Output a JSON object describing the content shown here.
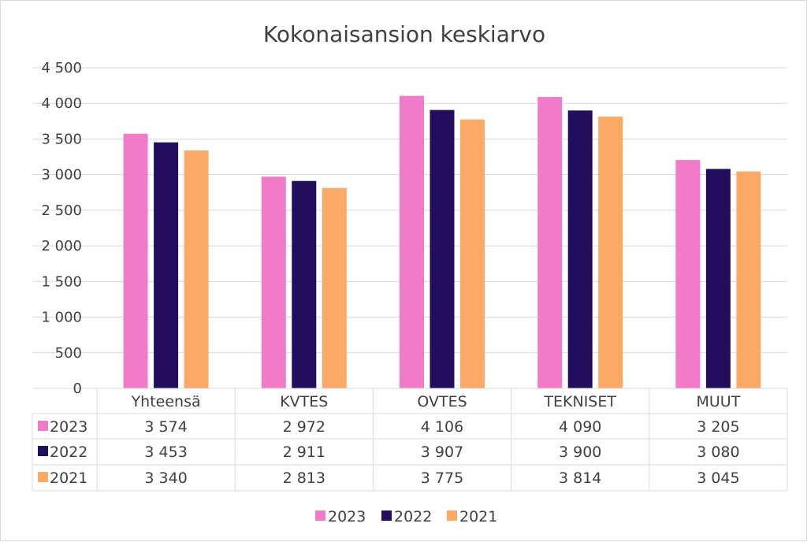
{
  "chart_data": {
    "type": "bar",
    "title": "Kokonaisansion keskiarvo",
    "categories": [
      "Yhteensä",
      "KVTES",
      "OVTES",
      "TEKNISET",
      "MUUT"
    ],
    "series": [
      {
        "name": "2023",
        "color": "#f27bc9",
        "values": [
          3574,
          2972,
          4106,
          4090,
          3205
        ],
        "labels": [
          "3 574",
          "2 972",
          "4 106",
          "4 090",
          "3 205"
        ]
      },
      {
        "name": "2022",
        "color": "#220e5c",
        "values": [
          3453,
          2911,
          3907,
          3900,
          3080
        ],
        "labels": [
          "3 453",
          "2 911",
          "3 907",
          "3 900",
          "3 080"
        ]
      },
      {
        "name": "2021",
        "color": "#fba964",
        "values": [
          3340,
          2813,
          3775,
          3814,
          3045
        ],
        "labels": [
          "3 340",
          "2 813",
          "3 775",
          "3 814",
          "3 045"
        ]
      }
    ],
    "ylim": [
      0,
      4500
    ],
    "yticks": [
      {
        "value": 0,
        "label": "0"
      },
      {
        "value": 500,
        "label": "500"
      },
      {
        "value": 1000,
        "label": "1 000"
      },
      {
        "value": 1500,
        "label": "1 500"
      },
      {
        "value": 2000,
        "label": "2 000"
      },
      {
        "value": 2500,
        "label": "2 500"
      },
      {
        "value": 3000,
        "label": "3 000"
      },
      {
        "value": 3500,
        "label": "3 500"
      },
      {
        "value": 4000,
        "label": "4 000"
      },
      {
        "value": 4500,
        "label": "4 500"
      }
    ],
    "grid": true,
    "legend": "bottom",
    "data_table": true
  }
}
